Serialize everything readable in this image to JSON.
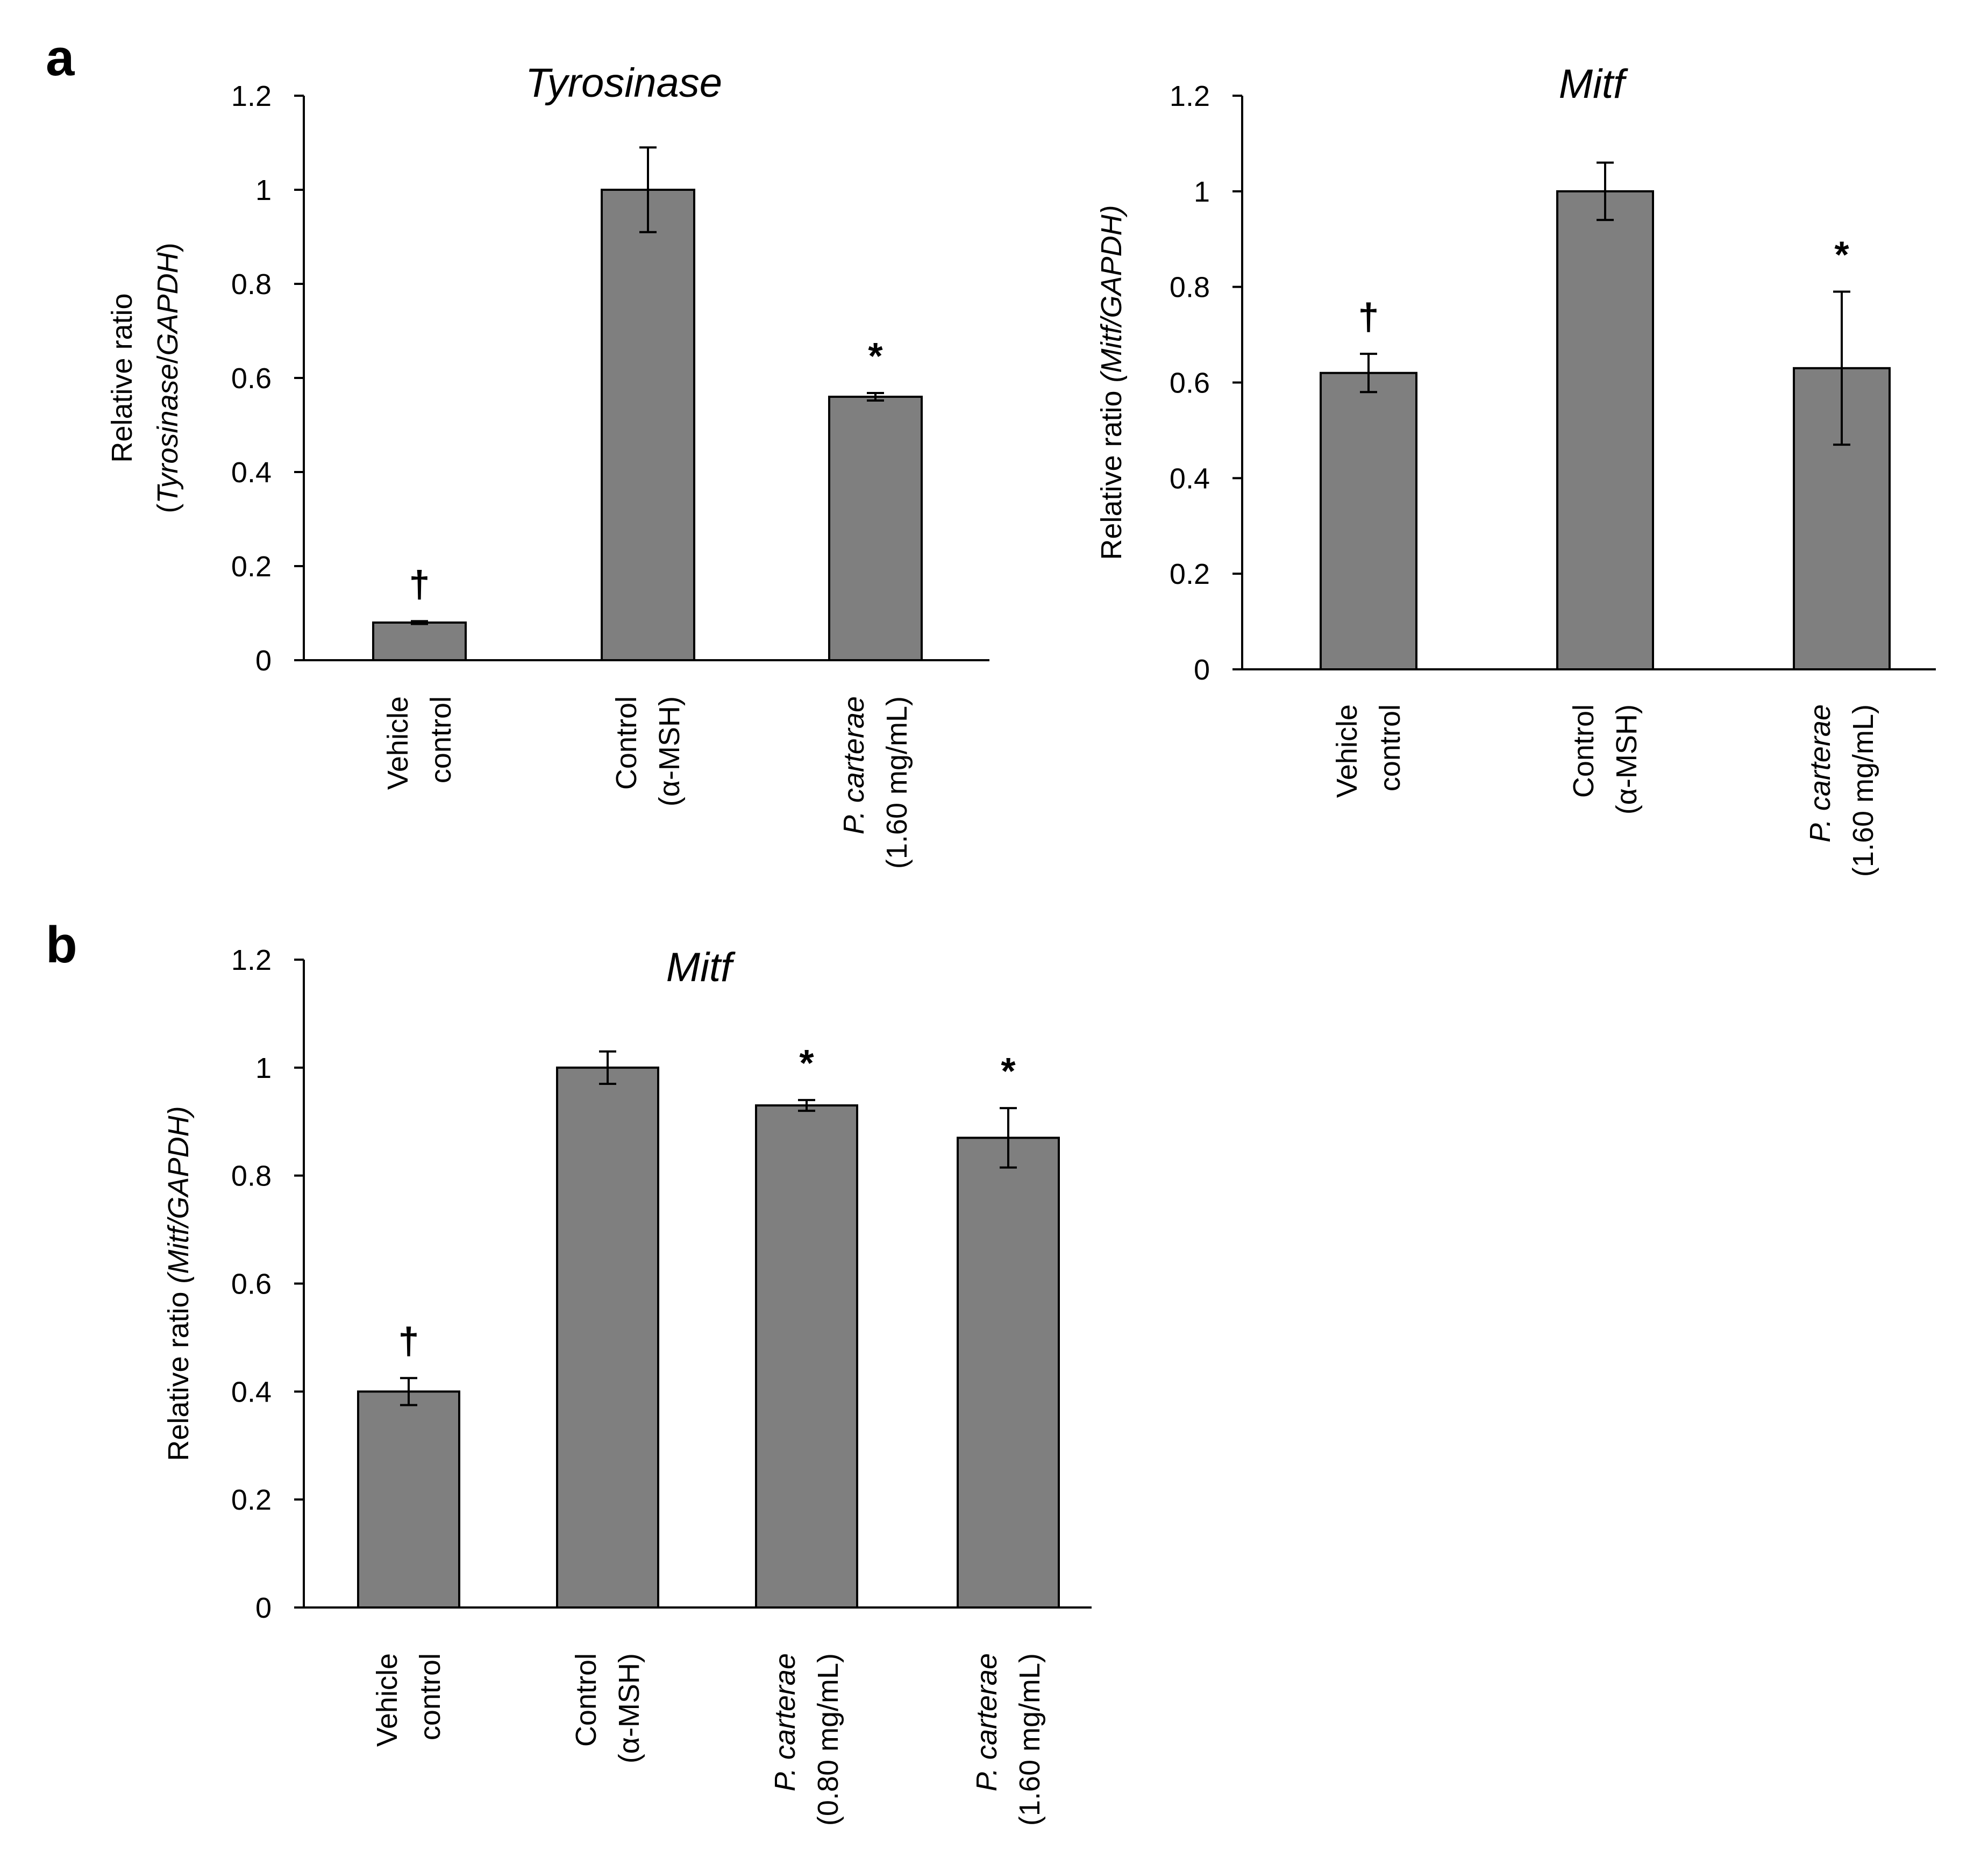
{
  "figure": {
    "panel_a_label": "a",
    "panel_b_label": "b"
  },
  "colors": {
    "bar_fill": "#7f7f7f",
    "bar_stroke": "#000000",
    "axis": "#000000"
  },
  "chart_data": [
    {
      "id": "a1",
      "type": "bar",
      "title": "Tyrosinase",
      "ylabel_lines": [
        [
          {
            "t": "Relative ratio",
            "i": false
          }
        ],
        [
          {
            "t": "(",
            "i": false
          },
          {
            "t": "Tyrosinase",
            "i": true
          },
          {
            "t": "/",
            "i": false
          },
          {
            "t": "GAPDH",
            "i": true
          },
          {
            "t": ")",
            "i": false
          }
        ]
      ],
      "ylim": [
        0,
        1.2
      ],
      "yticks": [
        "0",
        "0.2",
        "0.4",
        "0.6",
        "0.8",
        "1",
        "1.2"
      ],
      "categories": [
        [
          {
            "t": "Vehicle",
            "i": false
          },
          {
            "t": "control",
            "i": false
          }
        ],
        [
          {
            "t": "Control",
            "i": false
          },
          {
            "t": "(α-MSH)",
            "i": false
          }
        ],
        [
          {
            "t": "P.",
            "i": true,
            "rest": " carterae"
          },
          {
            "t": "(1.60 mg/mL)",
            "i": false
          }
        ]
      ],
      "values": [
        0.08,
        1.0,
        0.56
      ],
      "errors": [
        0.003,
        0.09,
        0.008
      ],
      "markers": [
        "†",
        "",
        "*"
      ]
    },
    {
      "id": "a2",
      "type": "bar",
      "title": "Mitf",
      "ylabel_lines": [
        [
          {
            "t": "Relative ratio ",
            "i": false
          },
          {
            "t": "(Mitf/GAPDH)",
            "i": true
          }
        ]
      ],
      "ylim": [
        0,
        1.2
      ],
      "yticks": [
        "0",
        "0.2",
        "0.4",
        "0.6",
        "0.8",
        "1",
        "1.2"
      ],
      "categories": [
        [
          {
            "t": "Vehicle",
            "i": false
          },
          {
            "t": "control",
            "i": false
          }
        ],
        [
          {
            "t": "Control",
            "i": false
          },
          {
            "t": "(α-MSH)",
            "i": false
          }
        ],
        [
          {
            "t": "P.",
            "i": true,
            "rest": " carterae"
          },
          {
            "t": "(1.60 mg/mL)",
            "i": false
          }
        ]
      ],
      "values": [
        0.62,
        1.0,
        0.63
      ],
      "errors": [
        0.04,
        0.06,
        0.16
      ],
      "markers": [
        "†",
        "",
        "*"
      ]
    },
    {
      "id": "b1",
      "type": "bar",
      "title": "Mitf",
      "ylabel_lines": [
        [
          {
            "t": "Relative ratio ",
            "i": false
          },
          {
            "t": "(Mitf/GAPDH)",
            "i": true
          }
        ]
      ],
      "ylim": [
        0,
        1.2
      ],
      "yticks": [
        "0",
        "0.2",
        "0.4",
        "0.6",
        "0.8",
        "1",
        "1.2"
      ],
      "categories": [
        [
          {
            "t": "Vehicle",
            "i": false
          },
          {
            "t": "control",
            "i": false
          }
        ],
        [
          {
            "t": "Control",
            "i": false
          },
          {
            "t": "(α-MSH)",
            "i": false
          }
        ],
        [
          {
            "t": "P.",
            "i": true,
            "rest": " carterae"
          },
          {
            "t": "(0.80  mg/mL)",
            "i": false
          }
        ],
        [
          {
            "t": "P.",
            "i": true,
            "rest": " carterae"
          },
          {
            "t": "(1.60 mg/mL)",
            "i": false
          }
        ]
      ],
      "values": [
        0.4,
        1.0,
        0.93,
        0.87
      ],
      "errors": [
        0.025,
        0.03,
        0.01,
        0.055
      ],
      "markers": [
        "†",
        "",
        "*",
        "*"
      ]
    }
  ]
}
